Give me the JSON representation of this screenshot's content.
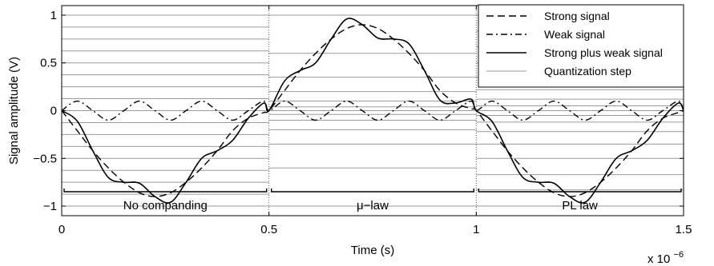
{
  "chart_data": {
    "type": "line",
    "xlabel": "Time (s)",
    "ylabel": "Signal amplitude (V)",
    "x_multiplier": "x 10",
    "x_multiplier_exp": "−6",
    "xlim": [
      0,
      1.5
    ],
    "ylim": [
      -1.1,
      1.1
    ],
    "x_ticks": [
      0,
      0.5,
      1,
      1.5
    ],
    "x_tick_labels": [
      "0",
      "0.5",
      "1",
      "1.5"
    ],
    "y_ticks": [
      -1,
      -0.5,
      0,
      0.5,
      1
    ],
    "y_tick_labels": [
      "−1",
      "−0.5",
      "0",
      "0.5",
      "1"
    ],
    "grid": false,
    "legend_position": "top-right",
    "segment_dividers_x": [
      0.5,
      1.0
    ],
    "segments": [
      {
        "label": "No companding",
        "x_range": [
          0,
          0.5
        ]
      },
      {
        "label": "μ−law",
        "x_range": [
          0.5,
          1.0
        ]
      },
      {
        "label": "PL law",
        "x_range": [
          1.0,
          1.5
        ]
      }
    ],
    "quantization_levels": [
      {
        "x_range": [
          0,
          0.5
        ],
        "levels": [
          -1.0,
          -0.875,
          -0.75,
          -0.625,
          -0.5,
          -0.375,
          -0.25,
          -0.125,
          0.0,
          0.125,
          0.25,
          0.375,
          0.5,
          0.625,
          0.75,
          0.875,
          1.0
        ]
      },
      {
        "x_range": [
          0.5,
          1.0
        ],
        "levels": [
          -1.0,
          -0.6,
          -0.35,
          -0.2,
          -0.1,
          -0.04,
          0.0,
          0.04,
          0.1,
          0.2,
          0.35,
          0.6,
          1.0
        ]
      },
      {
        "x_range": [
          1.0,
          1.5
        ],
        "levels": [
          -1.0,
          -0.83,
          -0.67,
          -0.5,
          -0.35,
          -0.22,
          -0.12,
          -0.05,
          0.0,
          0.05,
          0.12,
          0.22,
          0.35,
          0.5,
          0.67,
          0.83,
          1.0
        ]
      }
    ],
    "series": [
      {
        "name": "Strong signal",
        "style": "dashed",
        "color": "#000000",
        "x": [
          0,
          0.0375,
          0.075,
          0.1125,
          0.15,
          0.1875,
          0.225,
          0.2625,
          0.3,
          0.3375,
          0.375,
          0.4125,
          0.45,
          0.4875,
          0.5,
          0.5375,
          0.575,
          0.6125,
          0.65,
          0.6875,
          0.725,
          0.7625,
          0.8,
          0.8375,
          0.875,
          0.9125,
          0.95,
          0.9875,
          1.0,
          1.0375,
          1.075,
          1.1125,
          1.15,
          1.1875,
          1.225,
          1.2625,
          1.3,
          1.3375,
          1.375,
          1.4125,
          1.45,
          1.4875,
          1.5
        ],
        "y": [
          0,
          -0.21,
          -0.42,
          -0.6,
          -0.75,
          -0.86,
          -0.9,
          -0.86,
          -0.75,
          -0.6,
          -0.42,
          -0.21,
          -0.08,
          -0.02,
          0,
          0.21,
          0.42,
          0.6,
          0.75,
          0.86,
          0.9,
          0.86,
          0.75,
          0.6,
          0.42,
          0.21,
          0.08,
          0.02,
          0,
          -0.21,
          -0.42,
          -0.6,
          -0.75,
          -0.86,
          -0.9,
          -0.86,
          -0.75,
          -0.6,
          -0.42,
          -0.21,
          -0.08,
          -0.02,
          0
        ]
      },
      {
        "name": "Weak signal",
        "style": "dashdot",
        "color": "#000000",
        "x": [
          0,
          0.0375,
          0.075,
          0.1125,
          0.15,
          0.1875,
          0.225,
          0.2625,
          0.3,
          0.3375,
          0.375,
          0.4125,
          0.45,
          0.4875,
          0.5,
          0.5375,
          0.575,
          0.6125,
          0.65,
          0.6875,
          0.725,
          0.7625,
          0.8,
          0.8375,
          0.875,
          0.9125,
          0.95,
          0.9875,
          1.0,
          1.0375,
          1.075,
          1.1125,
          1.15,
          1.1875,
          1.225,
          1.2625,
          1.3,
          1.3375,
          1.375,
          1.4125,
          1.45,
          1.4875,
          1.5
        ],
        "y": [
          0,
          0.1,
          0,
          -0.1,
          0,
          0.1,
          0,
          -0.1,
          0,
          0.1,
          0,
          -0.1,
          0,
          0.1,
          0,
          0.1,
          0,
          -0.1,
          0,
          0.1,
          0,
          -0.1,
          0,
          0.1,
          0,
          -0.1,
          0,
          0.1,
          0,
          0.1,
          0,
          -0.1,
          0,
          0.1,
          0,
          -0.1,
          0,
          0.1,
          0,
          -0.1,
          0,
          0.1,
          0
        ]
      },
      {
        "name": "Strong plus weak signal",
        "style": "solid",
        "color": "#000000",
        "x": [
          0,
          0.0375,
          0.075,
          0.1125,
          0.15,
          0.1875,
          0.225,
          0.2625,
          0.3,
          0.3375,
          0.375,
          0.4125,
          0.45,
          0.4875,
          0.5,
          0.5375,
          0.575,
          0.6125,
          0.65,
          0.6875,
          0.725,
          0.7625,
          0.8,
          0.8375,
          0.875,
          0.9125,
          0.95,
          0.9875,
          1.0,
          1.0375,
          1.075,
          1.1125,
          1.15,
          1.1875,
          1.225,
          1.2625,
          1.3,
          1.3375,
          1.375,
          1.4125,
          1.45,
          1.4875,
          1.5
        ],
        "y": [
          0,
          -0.11,
          -0.42,
          -0.7,
          -0.75,
          -0.76,
          -0.9,
          -0.96,
          -0.75,
          -0.5,
          -0.42,
          -0.31,
          -0.08,
          0.08,
          0,
          0.31,
          0.42,
          0.5,
          0.75,
          0.96,
          0.9,
          0.76,
          0.75,
          0.7,
          0.42,
          0.11,
          0.08,
          0.12,
          0,
          -0.11,
          -0.42,
          -0.7,
          -0.75,
          -0.76,
          -0.9,
          -0.96,
          -0.75,
          -0.5,
          -0.42,
          -0.31,
          -0.08,
          0.08,
          0
        ]
      },
      {
        "name": "Quantization step",
        "style": "solid-thin",
        "color": "#9a9a9a"
      }
    ]
  }
}
